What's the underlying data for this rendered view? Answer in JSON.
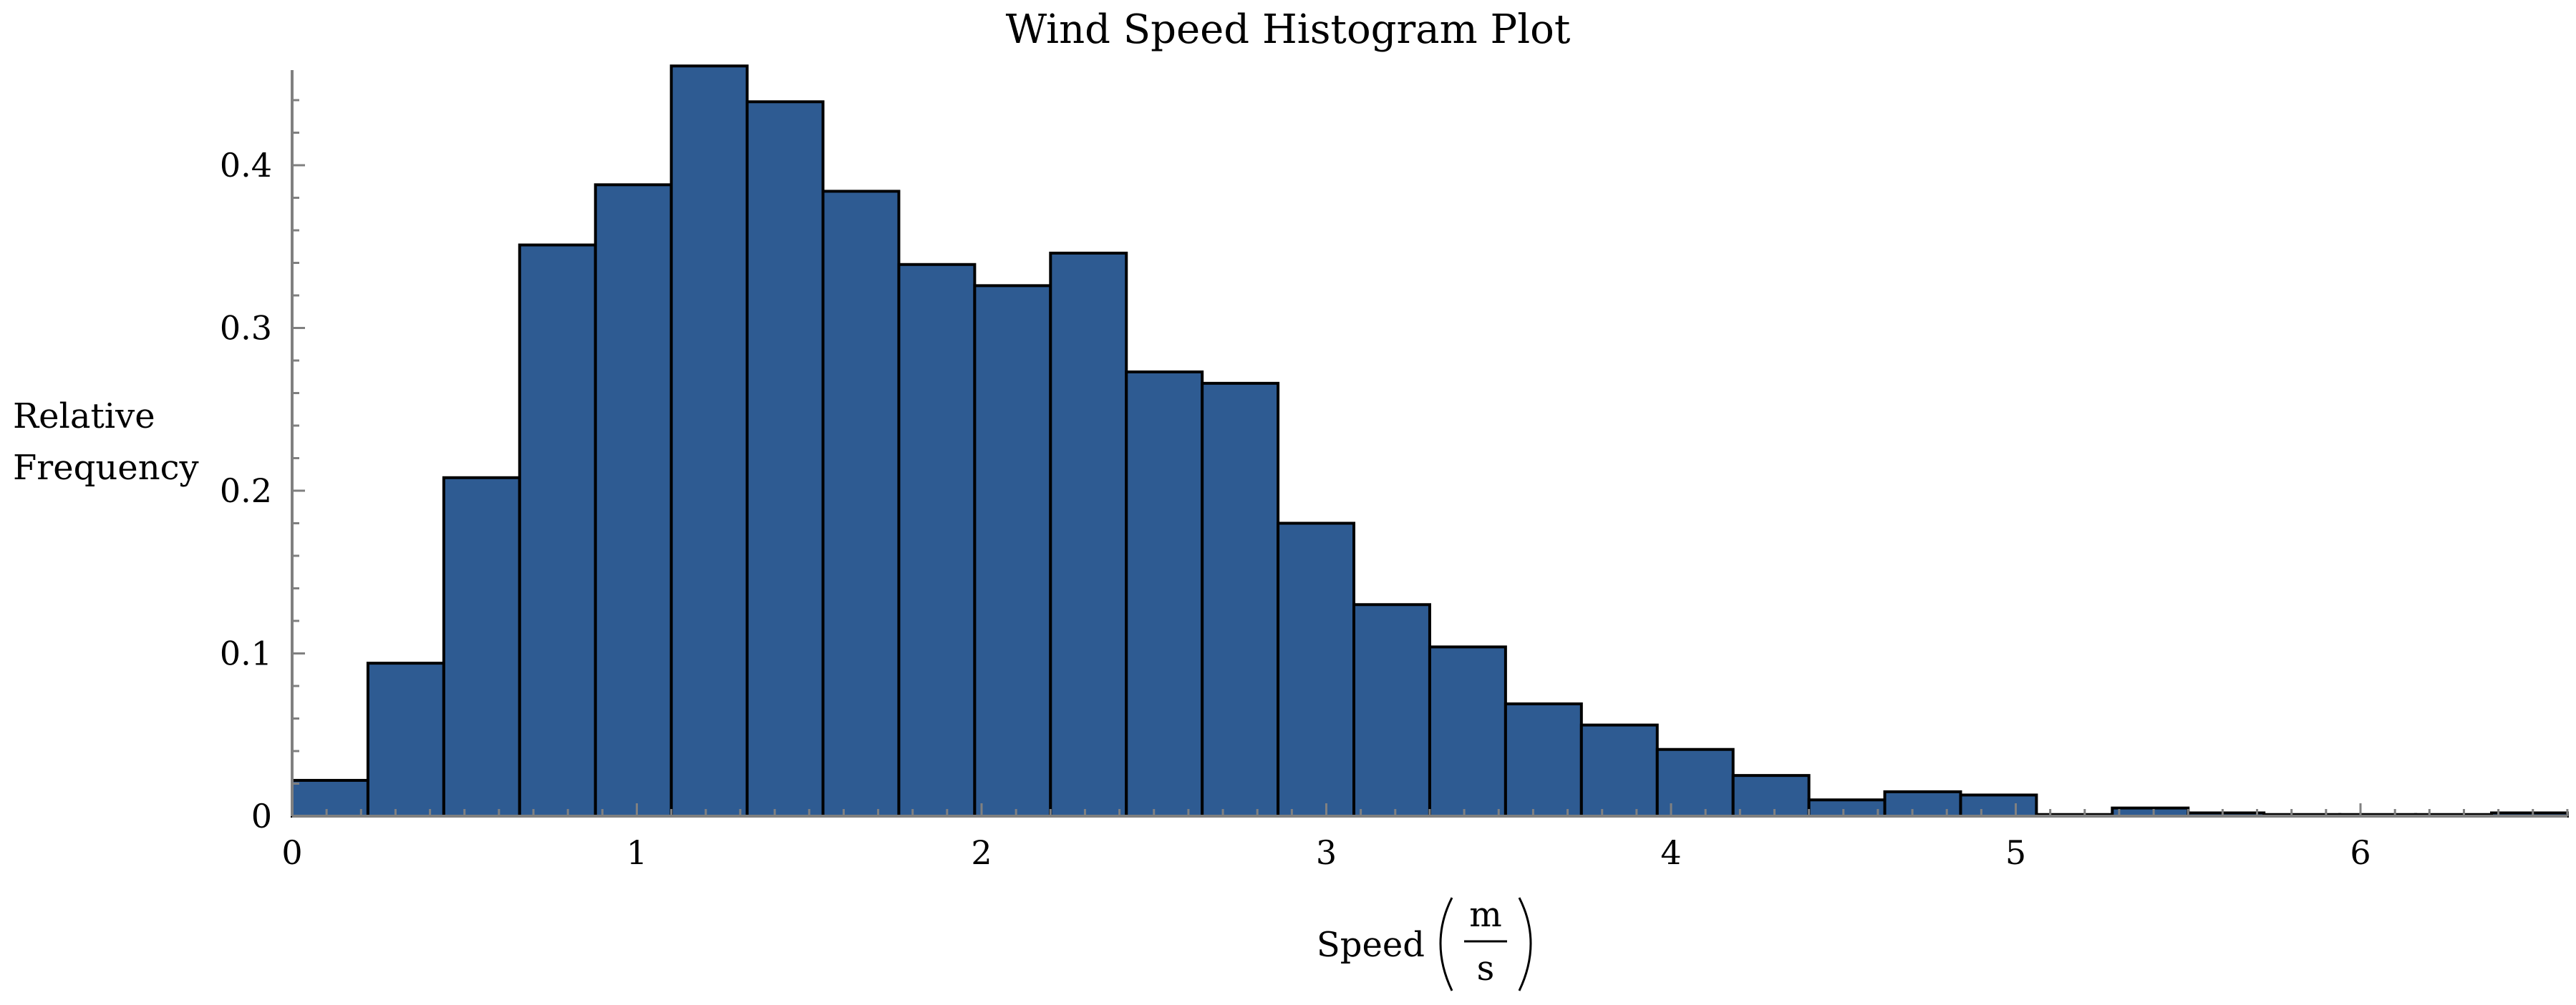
{
  "chart_data": {
    "type": "bar",
    "title": "Wind Speed Histogram Plot",
    "xlabel": "Speed",
    "xunit_numerator": "m",
    "xunit_denominator": "s",
    "ylabel_line1": "Relative",
    "ylabel_line2": "Frequency",
    "xlim": [
      0,
      6.6
    ],
    "ylim": [
      0,
      0.46
    ],
    "bin_width": 0.22,
    "bin_start": 0,
    "values": [
      0.022,
      0.094,
      0.208,
      0.351,
      0.388,
      0.461,
      0.439,
      0.384,
      0.339,
      0.326,
      0.346,
      0.273,
      0.266,
      0.18,
      0.13,
      0.104,
      0.069,
      0.056,
      0.041,
      0.025,
      0.01,
      0.015,
      0.013,
      0.001,
      0.005,
      0.002,
      0.001,
      0.001,
      0.001,
      0.002
    ],
    "xticks": [
      0,
      1,
      2,
      3,
      4,
      5,
      6
    ],
    "xtick_labels": [
      "0",
      "1",
      "2",
      "3",
      "4",
      "5",
      "6"
    ],
    "yticks": [
      0,
      0.1,
      0.2,
      0.3,
      0.4
    ],
    "ytick_labels": [
      "0",
      "0.1",
      "0.2",
      "0.3",
      "0.4"
    ],
    "grid": false,
    "colors": {
      "bar_fill": "#2e5b92",
      "bar_edge": "#000000",
      "axis": "#808080"
    }
  }
}
